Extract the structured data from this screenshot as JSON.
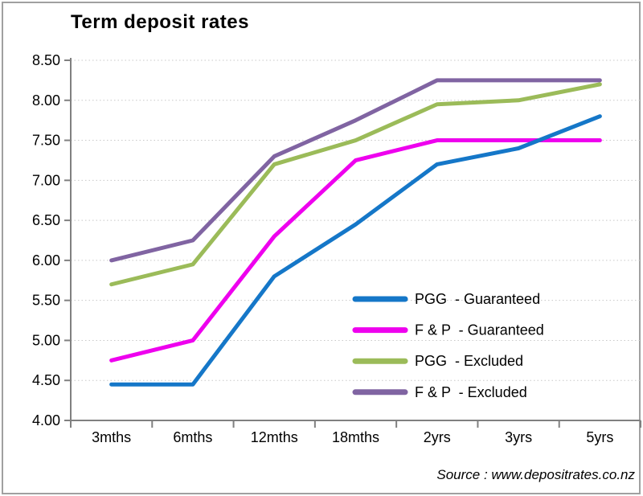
{
  "window": {
    "background": "#ffffff",
    "frame_border_color": "#a0a0a0"
  },
  "chart_data": {
    "type": "line",
    "title": "Term deposit rates",
    "source": "Source : www.depositrates.co.nz",
    "categories": [
      "3mths",
      "6mths",
      "12mths",
      "18mths",
      "2yrs",
      "3yrs",
      "5yrs"
    ],
    "series": [
      {
        "name": "PGG  - Guaranteed",
        "color": "#1577c8",
        "values": [
          4.45,
          4.45,
          5.8,
          6.45,
          7.2,
          7.4,
          7.8
        ]
      },
      {
        "name": "F & P  - Guaranteed",
        "color": "#ee00ee",
        "values": [
          4.75,
          5.0,
          6.3,
          7.25,
          7.5,
          7.5,
          7.5
        ]
      },
      {
        "name": "PGG  - Excluded",
        "color": "#9bbb59",
        "values": [
          5.7,
          5.95,
          7.2,
          7.5,
          7.95,
          8.0,
          8.2
        ]
      },
      {
        "name": "F & P  - Excluded",
        "color": "#8064a2",
        "values": [
          6.0,
          6.25,
          7.3,
          7.75,
          8.25,
          8.25,
          8.25
        ]
      }
    ],
    "xlabel": "",
    "ylabel": "",
    "ylim": [
      4.0,
      8.5
    ],
    "ytick_step": 0.5,
    "ytick_labels": [
      "8.50",
      "8.00",
      "7.50",
      "7.00",
      "6.50",
      "6.00",
      "5.50",
      "5.00",
      "4.50",
      "4.00"
    ],
    "grid": "horizontal dotted",
    "grid_color": "#c8c8c8",
    "axis_color": "#808080",
    "legend_position": "inside lower-right"
  }
}
